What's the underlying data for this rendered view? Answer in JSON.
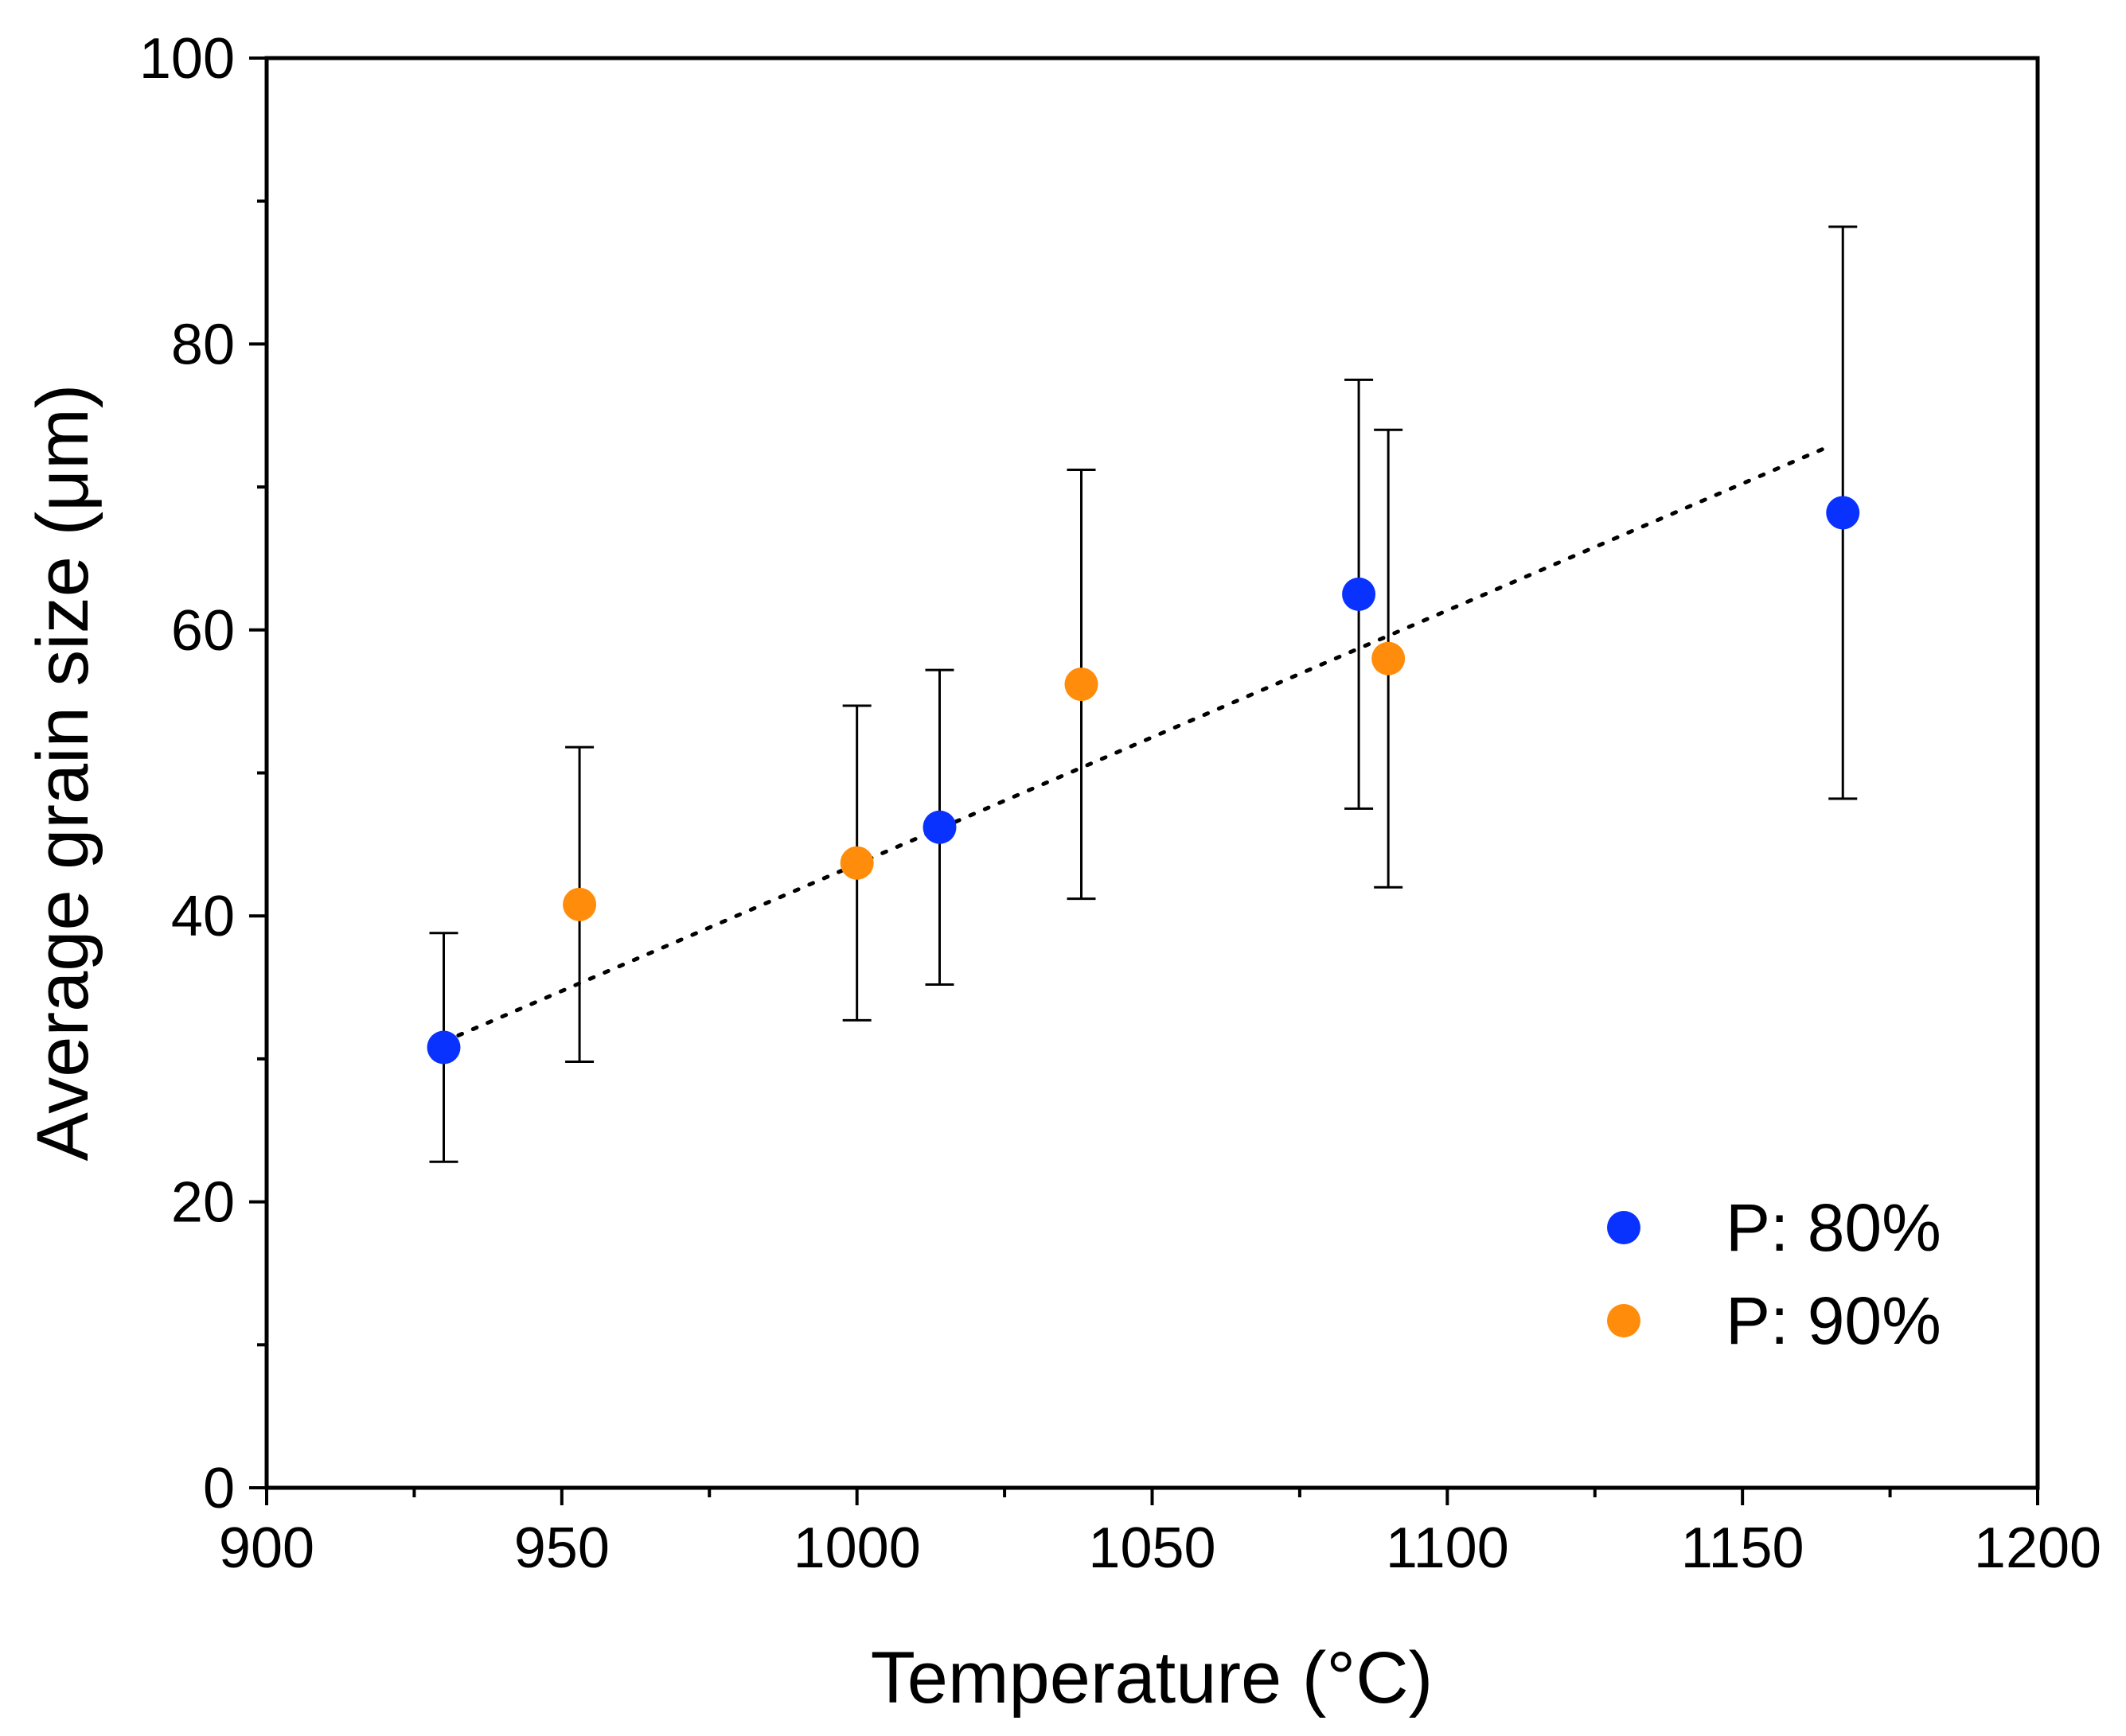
{
  "chart_data": {
    "type": "scatter",
    "title": "",
    "xlabel": "Temperature (°C)",
    "ylabel": "Average grain size (μm)",
    "xlim": [
      900,
      1200
    ],
    "ylim": [
      0,
      100
    ],
    "x_ticks": [
      900,
      950,
      1000,
      1050,
      1100,
      1150,
      1200
    ],
    "y_ticks": [
      0,
      20,
      40,
      60,
      80,
      100
    ],
    "grid": false,
    "legend_position": "bottom-right",
    "series": [
      {
        "name": "P: 80%",
        "color": "#0a32ff",
        "points": [
          {
            "x": 930,
            "y": 30.8,
            "yerr_low": 22.8,
            "yerr_high": 38.8
          },
          {
            "x": 1014,
            "y": 46.2,
            "yerr_low": 35.2,
            "yerr_high": 57.2
          },
          {
            "x": 1085,
            "y": 62.5,
            "yerr_low": 47.5,
            "yerr_high": 77.5
          },
          {
            "x": 1167,
            "y": 68.2,
            "yerr_low": 48.2,
            "yerr_high": 88.2
          }
        ]
      },
      {
        "name": "P: 90%",
        "color": "#ff8c0a",
        "points": [
          {
            "x": 953,
            "y": 40.8,
            "yerr_low": 29.8,
            "yerr_high": 51.8
          },
          {
            "x": 1000,
            "y": 43.7,
            "yerr_low": 32.7,
            "yerr_high": 54.7
          },
          {
            "x": 1038,
            "y": 56.2,
            "yerr_low": 41.2,
            "yerr_high": 71.2
          },
          {
            "x": 1090,
            "y": 58.0,
            "yerr_low": 42.0,
            "yerr_high": 74.0
          }
        ]
      }
    ],
    "trendline": {
      "style": "dotted",
      "color": "#000000",
      "x_start": 930,
      "y_start": 31.2,
      "x_end": 1165,
      "y_end": 72.9
    }
  }
}
